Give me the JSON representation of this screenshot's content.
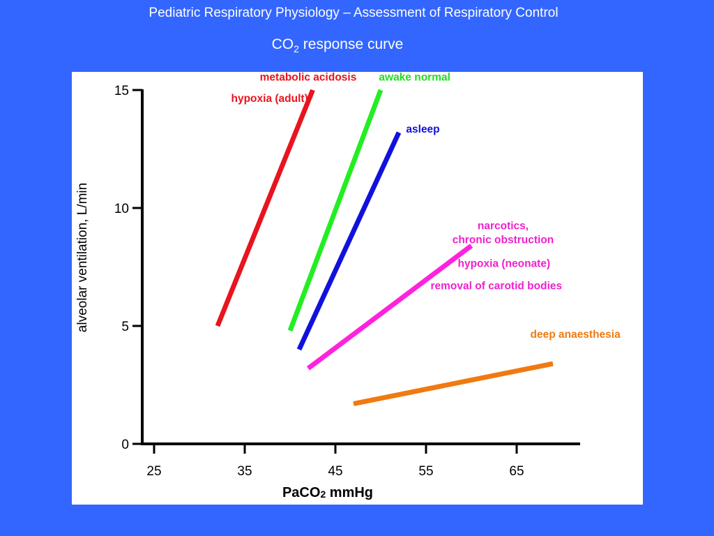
{
  "slide": {
    "title": "Pediatric Respiratory Physiology – Assessment of Respiratory Control",
    "subtitle_main": "CO",
    "subtitle_sub": "2",
    "subtitle_rest": " response curve"
  },
  "chart_data": {
    "type": "line",
    "title": "",
    "xlabel_main": "PaCO",
    "xlabel_sub": "2",
    "xlabel_rest": " mmHg",
    "ylabel": "alveolar ventilation, L/min",
    "xlim": [
      23,
      72
    ],
    "ylim": [
      0,
      15
    ],
    "xticks": [
      25,
      35,
      45,
      55,
      65
    ],
    "yticks": [
      0,
      5,
      10,
      15
    ],
    "grid": false,
    "series": [
      {
        "name": "metabolic acidosis / hypoxia (adult)",
        "color": "#e8141e",
        "x": [
          32,
          42.5
        ],
        "y": [
          5,
          15
        ]
      },
      {
        "name": "awake normal",
        "color": "#22ee22",
        "x": [
          40,
          50
        ],
        "y": [
          4.8,
          15
        ]
      },
      {
        "name": "asleep",
        "color": "#1111dd",
        "x": [
          41,
          52
        ],
        "y": [
          4,
          13.2
        ]
      },
      {
        "name": "narcotics, chronic obstruction / hypoxia (neonate) / removal of carotid bodies",
        "color": "#ff22dd",
        "x": [
          42,
          60
        ],
        "y": [
          3.2,
          8.4
        ]
      },
      {
        "name": "deep anaesthesia",
        "color": "#f07a12",
        "x": [
          47,
          69
        ],
        "y": [
          1.7,
          3.4
        ]
      }
    ],
    "annotations": [
      {
        "text": "metabolic acidosis",
        "color": "#e8141e",
        "x": 42,
        "y": 15.4,
        "anchor": "middle"
      },
      {
        "text": "hypoxia (adult)",
        "color": "#e8141e",
        "x": 33.5,
        "y": 14.5,
        "anchor": "start"
      },
      {
        "text": "awake normal",
        "color": "#22dd22",
        "x": 49.8,
        "y": 15.4,
        "anchor": "start"
      },
      {
        "text": "asleep",
        "color": "#1111dd",
        "x": 52.8,
        "y": 13.2,
        "anchor": "start"
      },
      {
        "text": "narcotics,",
        "color": "#ee22cc",
        "x": 63.5,
        "y": 9.1,
        "anchor": "middle"
      },
      {
        "text": "chronic obstruction",
        "color": "#ee22cc",
        "x": 63.5,
        "y": 8.5,
        "anchor": "middle"
      },
      {
        "text": "hypoxia (neonate)",
        "color": "#ee22cc",
        "x": 58.5,
        "y": 7.5,
        "anchor": "start"
      },
      {
        "text": "removal of carotid bodies",
        "color": "#ee22cc",
        "x": 55.5,
        "y": 6.55,
        "anchor": "start"
      },
      {
        "text": "deep anaesthesia",
        "color": "#f07a12",
        "x": 66.5,
        "y": 4.5,
        "anchor": "start"
      }
    ]
  }
}
